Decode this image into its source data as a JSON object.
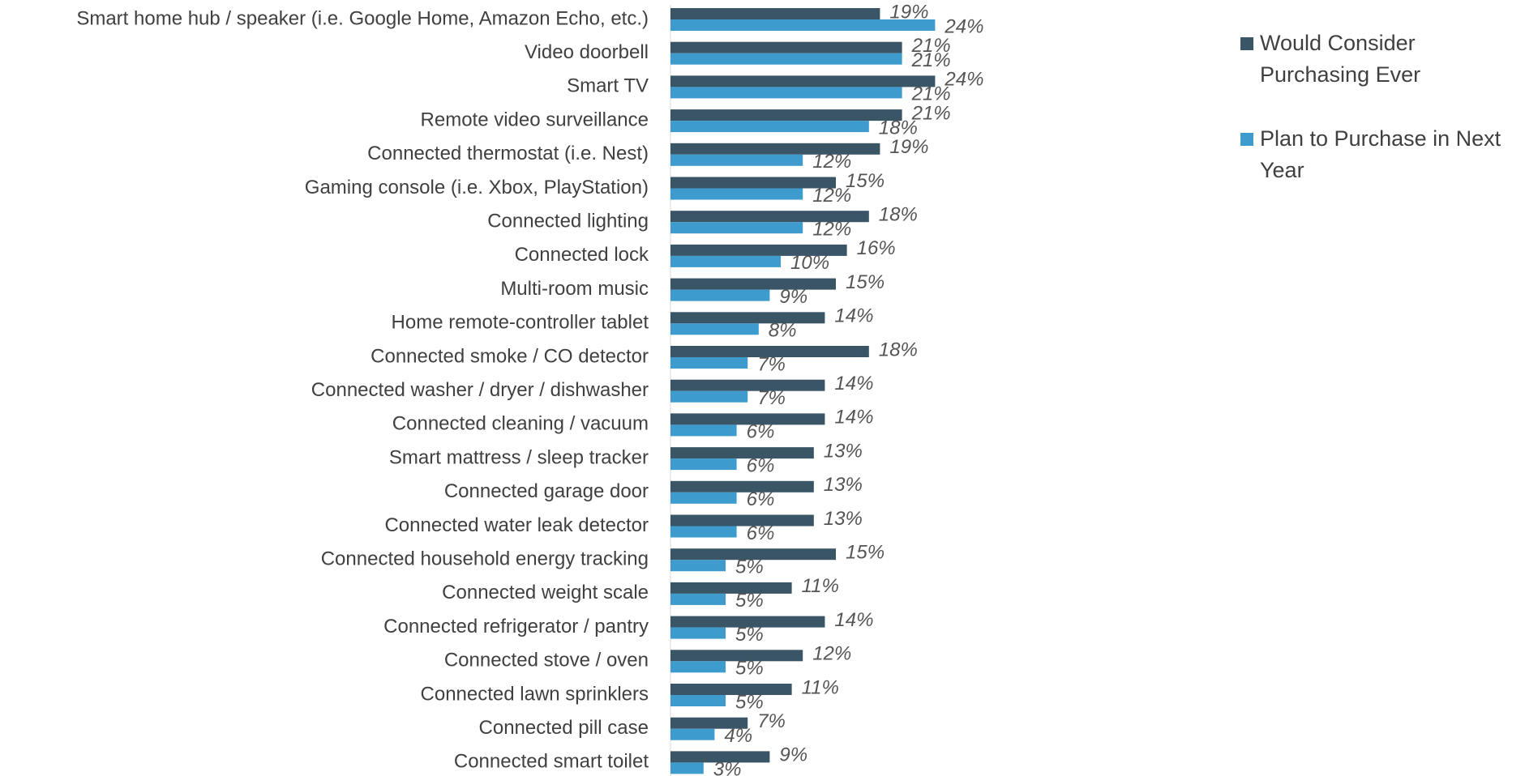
{
  "chart_data": {
    "type": "barh",
    "categories": [
      "Smart home hub / speaker (i.e. Google Home, Amazon Echo, etc.)",
      "Video doorbell",
      "Smart TV",
      "Remote video surveillance",
      "Connected thermostat (i.e. Nest)",
      "Gaming console (i.e. Xbox, PlayStation)",
      "Connected lighting",
      "Connected lock",
      "Multi-room music",
      "Home remote-controller tablet",
      "Connected smoke / CO detector",
      "Connected washer / dryer / dishwasher",
      "Connected cleaning / vacuum",
      "Smart mattress / sleep tracker",
      "Connected garage door",
      "Connected water leak detector",
      "Connected household energy tracking",
      "Connected weight scale",
      "Connected refrigerator / pantry",
      "Connected stove / oven",
      "Connected lawn sprinklers",
      "Connected pill case",
      "Connected smart toilet"
    ],
    "series": [
      {
        "name": "Would Consider Purchasing Ever",
        "color": "#3a5566",
        "values": [
          19,
          21,
          24,
          21,
          19,
          15,
          18,
          16,
          15,
          14,
          18,
          14,
          14,
          13,
          13,
          13,
          15,
          11,
          14,
          12,
          11,
          7,
          9
        ],
        "value_labels": [
          "19%",
          "21%",
          "24%",
          "21%",
          "19%",
          "15%",
          "18%",
          "16%",
          "15%",
          "14%",
          "18%",
          "14%",
          "14%",
          "13%",
          "13%",
          "13%",
          "15%",
          "11%",
          "14%",
          "12%",
          "11%",
          "7%",
          "9%"
        ]
      },
      {
        "name": "Plan to Purchase in Next Year",
        "color": "#3d9bce",
        "values": [
          24,
          21,
          21,
          18,
          12,
          12,
          12,
          10,
          9,
          8,
          7,
          7,
          6,
          6,
          6,
          6,
          5,
          5,
          5,
          5,
          5,
          4,
          3
        ],
        "value_labels": [
          "24%",
          "21%",
          "21%",
          "18%",
          "12%",
          "12%",
          "12%",
          "10%",
          "9%",
          "8%",
          "7%",
          "7%",
          "6%",
          "6%",
          "6%",
          "6%",
          "5%",
          "5%",
          "5%",
          "5%",
          "5%",
          "4%",
          "3%"
        ]
      }
    ],
    "legend": "right"
  }
}
